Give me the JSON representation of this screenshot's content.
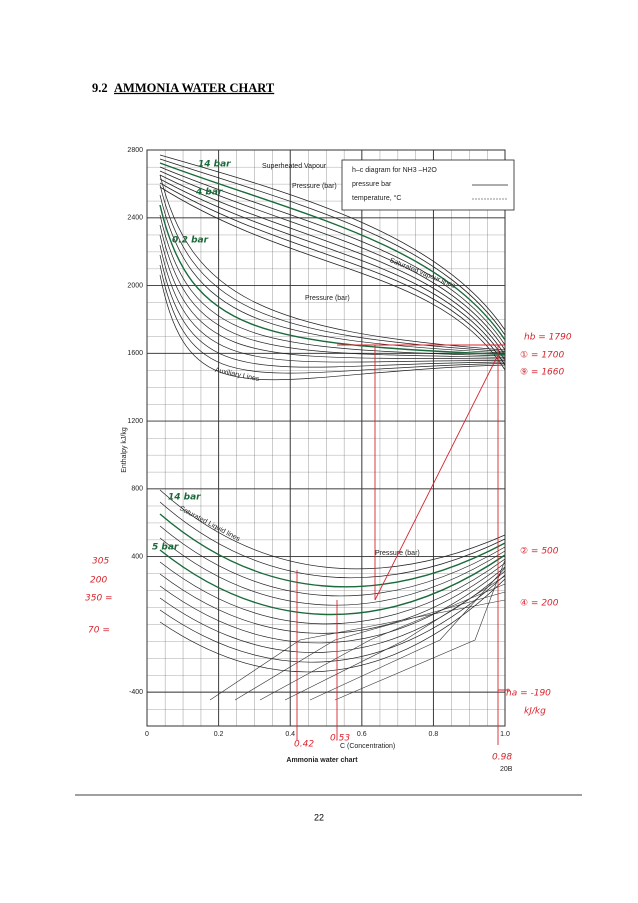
{
  "header": {
    "number": "9.2",
    "title": "AMMONIA WATER CHART"
  },
  "figure": {
    "legend_title": "h–c diagram for NH3 –H2O",
    "legend_rows": [
      "pressure bar",
      "temperature, °C"
    ],
    "regions": {
      "superheated": "Superheated Vapour",
      "vapour_lines": "Saturated vapour lines",
      "liquid_lines": "Saturated Liquid lines",
      "auxiliary": "Auxiliary Lines",
      "pressure_upper": "Pressure (bar)",
      "pressure_lower": "Pressure (bar)",
      "pressure_liquid": "Pressure (bar)"
    },
    "y_label": "Enthalpy kJ/kg",
    "x_label": "C (Concentration)",
    "caption": "Ammonia water chart",
    "code": "20B",
    "xlim": [
      0,
      1
    ],
    "ylim": [
      -600,
      2800
    ],
    "xticks": [
      0,
      0.2,
      0.4,
      0.6,
      0.8,
      {
        "value": 1,
        "label": "1.0"
      }
    ],
    "yticks": [
      2800,
      2400,
      2000,
      1600,
      1200,
      800,
      400,
      -400
    ],
    "annotations": {
      "p14_top": "14 bar",
      "p4_top": "4 bar",
      "p02_top": "0.2 bar",
      "hb": "hb = 1790",
      "h1": "① = 1700",
      "h9": "⑨ = 1660",
      "h2": "② = 500",
      "h4": "④ = 200",
      "ha": "ha = -190",
      "ha_unit": "kJ/kg",
      "c1": "0.42",
      "c2": "0.53",
      "c3": "0.98",
      "l305": "305",
      "l200": "200",
      "l350": "350 =",
      "l70": "70 =",
      "p14_low": "14 bar",
      "p5_low": "5 bar"
    }
  },
  "footer": {
    "page": "22"
  }
}
